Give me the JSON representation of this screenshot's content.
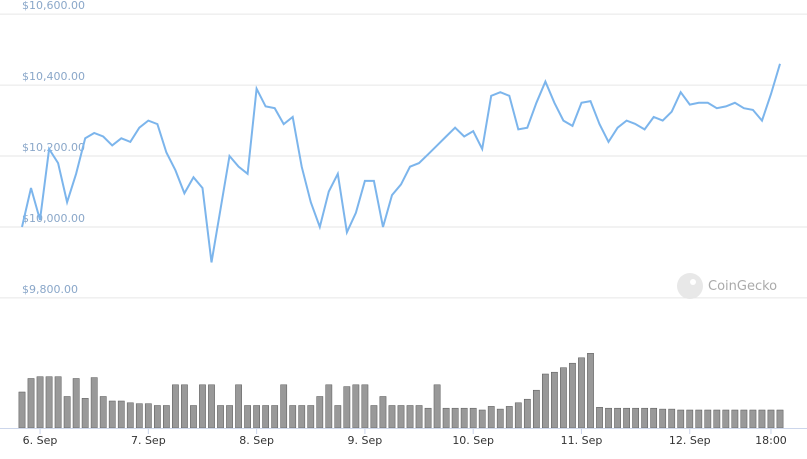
{
  "chart_data": {
    "type": "line",
    "watermark": "CoinGecko",
    "x": [
      -4,
      -2,
      0,
      2,
      4,
      6,
      8,
      10,
      12,
      14,
      16,
      18,
      20,
      22,
      24,
      26,
      28,
      30,
      32,
      34,
      36,
      38,
      40,
      42,
      44,
      46,
      48,
      50,
      52,
      54,
      56,
      58,
      60,
      62,
      64,
      66,
      68,
      70,
      72,
      74,
      76,
      78,
      80,
      82,
      84,
      86,
      88,
      90,
      92,
      94,
      96,
      98,
      100,
      102,
      104,
      106,
      108,
      110,
      112,
      114,
      116,
      118,
      120,
      122,
      124,
      126,
      128,
      130,
      132,
      134,
      136,
      138,
      140,
      142,
      144,
      146,
      148,
      150,
      152,
      154,
      156,
      158,
      160,
      162,
      164
    ],
    "xlim": [
      -4,
      164
    ],
    "xticks": [
      {
        "value": 0,
        "label": "6. Sep"
      },
      {
        "value": 24,
        "label": "7. Sep"
      },
      {
        "value": 48,
        "label": "8. Sep"
      },
      {
        "value": 72,
        "label": "9. Sep"
      },
      {
        "value": 96,
        "label": "10. Sep"
      },
      {
        "value": 120,
        "label": "11. Sep"
      },
      {
        "value": 144,
        "label": "12. Sep"
      },
      {
        "value": 162,
        "label": "18:00"
      }
    ],
    "ylim": [
      9780,
      10640
    ],
    "yticks": [
      {
        "value": 9800,
        "label": "$9,800.00"
      },
      {
        "value": 10000,
        "label": "$10,000.00"
      },
      {
        "value": 10200,
        "label": "$10,200.00"
      },
      {
        "value": 10400,
        "label": "$10,400.00"
      },
      {
        "value": 10600,
        "label": "$10,600.00"
      }
    ],
    "y2lim": [
      0,
      100
    ],
    "grid": true,
    "series": [
      {
        "color": "#7cb5ec",
        "values": [
          10000,
          10110,
          10020,
          10220,
          10180,
          10070,
          10150,
          10250,
          10265,
          10255,
          10230,
          10250,
          10240,
          10280,
          10300,
          10290,
          10210,
          10160,
          10095,
          10140,
          10110,
          9900,
          10050,
          10200,
          10170,
          10150,
          10390,
          10340,
          10335,
          10290,
          10310,
          10170,
          10070,
          10000,
          10100,
          10150,
          9985,
          10040,
          10130,
          10130,
          10000,
          10090,
          10120,
          10170,
          10180,
          10205,
          10230,
          10255,
          10280,
          10255,
          10270,
          10220,
          10370,
          10380,
          10370,
          10275,
          10280,
          10350,
          10410,
          10350,
          10300,
          10285,
          10350,
          10355,
          10290,
          10240,
          10280,
          10300,
          10290,
          10275,
          10310,
          10300,
          10325,
          10380,
          10345,
          10350,
          10350,
          10335,
          10340,
          10350,
          10335,
          10330,
          10300,
          10375,
          10460
        ]
      },
      {
        "type": "bar",
        "axis": "y2",
        "color": "#999999",
        "values": [
          40,
          55,
          57,
          57,
          57,
          35,
          55,
          33,
          56,
          35,
          30,
          30,
          28,
          27,
          27,
          25,
          25,
          48,
          48,
          25,
          48,
          48,
          25,
          25,
          48,
          25,
          25,
          25,
          25,
          48,
          25,
          25,
          25,
          35,
          48,
          25,
          46,
          48,
          48,
          25,
          35,
          25,
          25,
          25,
          25,
          22,
          48,
          22,
          22,
          22,
          22,
          20,
          24,
          21,
          24,
          28,
          32,
          42,
          60,
          62,
          67,
          72,
          78,
          83,
          23,
          22,
          22,
          22,
          22,
          22,
          22,
          21,
          21,
          20,
          20,
          20,
          20,
          20,
          20,
          20,
          20,
          20,
          20,
          20,
          20
        ]
      }
    ]
  }
}
